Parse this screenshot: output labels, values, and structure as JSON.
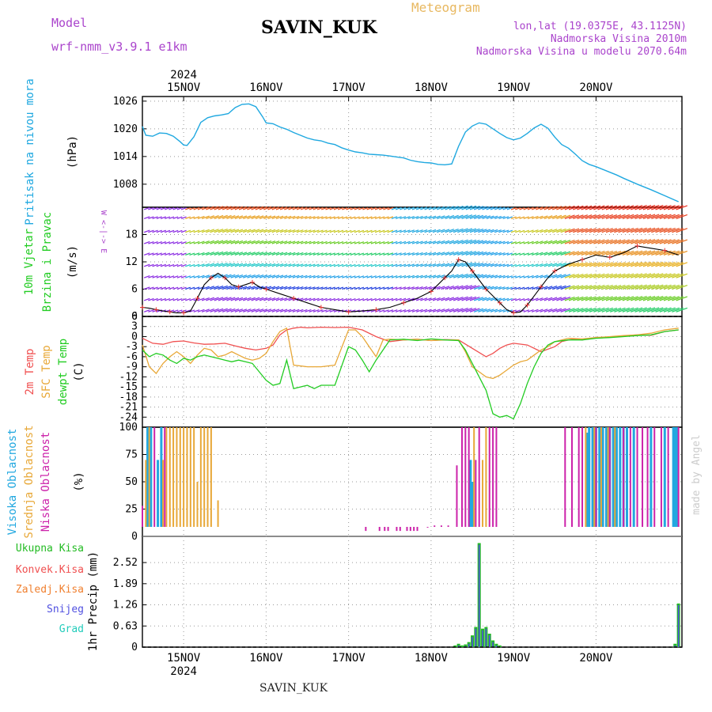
{
  "header": {
    "model_label": "Model",
    "model_name": "wrf-nmm_v3.9.1 e1km",
    "station": "SAVIN_KUK",
    "meteogram": "Meteogram",
    "lonlat": "lon,lat (19.0375E, 43.1125N)",
    "elev": "Nadmorska Visina 2010m",
    "elev_model": "Nadmorska Visina u modelu 2070.64m",
    "made_by": "made by Angel",
    "footer_station": "SAVIN_KUK",
    "year_top": "2024",
    "year_bottom": "2024"
  },
  "colors": {
    "pressure": "#1fa8e0",
    "temp2m": "#f05050",
    "sfc": "#e8a838",
    "dew": "#22cc22",
    "high_cloud": "#22a8e0",
    "mid_cloud": "#e8a838",
    "low_cloud": "#cc22aa",
    "precip": "#22bb22",
    "conv": "#f05050",
    "frozen": "#f08030",
    "snow": "#5050e0",
    "hail": "#22ccbb",
    "purple": "#aa44cc"
  },
  "chart_data": [
    {
      "type": "line",
      "panel": "pressure",
      "ylabel_lines": [
        "Pritisak na nivou mora",
        "(hPa)"
      ],
      "ylim": [
        1003,
        1027
      ],
      "yticks": [
        "1008",
        "1014",
        "1020",
        "1026"
      ],
      "x_day_labels": [
        "15NOV",
        "16NOV",
        "17NOV",
        "18NOV",
        "19NOV",
        "20NOV"
      ],
      "x_unit": "hours from 15NOV 00Z",
      "series": [
        {
          "key": "pressure",
          "x": [
            -12,
            -11,
            -9,
            -7,
            -5,
            -3,
            -1,
            0,
            1,
            3,
            5,
            7,
            9,
            11,
            13,
            15,
            17,
            19,
            21,
            23,
            24,
            26,
            28,
            30,
            32,
            34,
            36,
            38,
            40,
            42,
            44,
            46,
            48,
            50,
            52,
            54,
            56,
            58,
            60,
            62,
            64,
            66,
            68,
            70,
            72,
            74,
            76,
            78,
            80,
            82,
            84,
            86,
            88,
            90,
            92,
            94,
            96,
            98,
            100,
            102,
            104,
            106,
            108,
            110,
            112,
            114,
            116,
            118,
            120,
            122,
            124,
            126,
            128,
            132,
            136,
            140,
            144
          ],
          "values": [
            1020.5,
            1018.6,
            1018.4,
            1019.1,
            1019.0,
            1018.4,
            1017.2,
            1016.5,
            1016.4,
            1018.3,
            1021.4,
            1022.4,
            1022.8,
            1023.0,
            1023.3,
            1024.6,
            1025.3,
            1025.4,
            1024.8,
            1022.6,
            1021.3,
            1021.1,
            1020.4,
            1019.9,
            1019.2,
            1018.6,
            1018.0,
            1017.6,
            1017.4,
            1016.9,
            1016.6,
            1015.9,
            1015.4,
            1015.0,
            1014.8,
            1014.5,
            1014.4,
            1014.3,
            1014.1,
            1013.9,
            1013.7,
            1013.2,
            1012.9,
            1012.7,
            1012.6,
            1012.3,
            1012.2,
            1012.4,
            1016.2,
            1019.3,
            1020.6,
            1021.3,
            1021.0,
            1020.0,
            1019.0,
            1018.1,
            1017.6,
            1018.0,
            1019.0,
            1020.2,
            1021.0,
            1020.1,
            1018.2,
            1016.6,
            1015.8,
            1014.5,
            1013.1,
            1012.3,
            1011.8,
            1011.2,
            1010.6,
            1010.0,
            1009.3,
            1008.0,
            1006.8,
            1005.5,
            1004.2
          ]
        }
      ]
    },
    {
      "type": "line",
      "panel": "wind",
      "ylabel_lines": [
        "10m Vjetar",
        "Brzina i Pravac",
        "(m/s)"
      ],
      "ylim": [
        0,
        24
      ],
      "yticks": [
        "0",
        "6",
        "12",
        "18"
      ],
      "compass": "W <-|-> E",
      "series": [
        {
          "key": "wind_speed",
          "x": [
            -12,
            -10,
            -8,
            -6,
            -4,
            -2,
            0,
            2,
            4,
            6,
            8,
            10,
            12,
            14,
            16,
            18,
            20,
            22,
            24,
            28,
            32,
            36,
            40,
            44,
            48,
            52,
            56,
            60,
            64,
            68,
            72,
            74,
            76,
            78,
            80,
            82,
            84,
            86,
            88,
            90,
            92,
            94,
            96,
            98,
            100,
            102,
            104,
            106,
            108,
            112,
            116,
            120,
            124,
            128,
            132,
            136,
            140,
            144
          ],
          "values": [
            2.0,
            1.8,
            1.5,
            1.2,
            1.0,
            0.8,
            0.8,
            1.2,
            4.0,
            7.0,
            8.5,
            9.5,
            8.5,
            7.0,
            6.5,
            7.0,
            7.5,
            6.5,
            6.0,
            5.0,
            4.0,
            3.0,
            2.0,
            1.5,
            1.0,
            1.2,
            1.5,
            2.0,
            3.0,
            4.0,
            5.5,
            7.0,
            8.5,
            10.0,
            12.5,
            12.0,
            10.0,
            8.0,
            6.0,
            4.5,
            3.0,
            1.5,
            0.8,
            1.0,
            2.5,
            4.5,
            6.5,
            8.5,
            10.0,
            11.5,
            12.5,
            13.5,
            13.0,
            14.0,
            15.5,
            15.0,
            14.5,
            13.5
          ]
        }
      ]
    },
    {
      "type": "line",
      "panel": "temperature",
      "ylabel_lines": [
        "2m Temp",
        "SFC Temp",
        "dewpt Temp",
        "(C)"
      ],
      "ylim": [
        -27,
        6
      ],
      "yticks": [
        "6",
        "3",
        "0",
        "-3",
        "-6",
        "-9",
        "-12",
        "-15",
        "-18",
        "-21",
        "-24"
      ],
      "series": [
        {
          "key": "temp2m",
          "x": [
            -12,
            -9,
            -6,
            -3,
            0,
            3,
            6,
            9,
            12,
            15,
            18,
            21,
            24,
            26,
            28,
            30,
            32,
            34,
            36,
            40,
            44,
            48,
            52,
            56,
            60,
            64,
            68,
            72,
            76,
            80,
            84,
            88,
            90,
            92,
            94,
            96,
            100,
            104,
            108,
            110,
            112,
            114,
            116,
            118,
            120,
            124,
            128,
            132,
            136,
            140,
            144
          ],
          "values": [
            -0.5,
            -2.0,
            -2.3,
            -1.5,
            -1.3,
            -1.9,
            -2.3,
            -2.2,
            -2.0,
            -2.8,
            -3.5,
            -4.0,
            -3.5,
            -2.5,
            0.5,
            2.0,
            2.5,
            2.8,
            2.6,
            2.8,
            2.7,
            2.8,
            2.0,
            0.0,
            -1.5,
            -1.0,
            -0.8,
            -1.2,
            -0.9,
            -1.0,
            -3.5,
            -6.0,
            -5.0,
            -3.5,
            -2.5,
            -2.0,
            -2.5,
            -4.5,
            -3.0,
            -1.5,
            -1.0,
            -0.7,
            -1.0,
            -0.6,
            -0.3,
            -0.2,
            0.2,
            0.5,
            0.4,
            1.5,
            2.0
          ]
        },
        {
          "key": "sfc",
          "x": [
            -12,
            -10,
            -8,
            -6,
            -4,
            -2,
            0,
            2,
            4,
            6,
            8,
            10,
            12,
            14,
            16,
            18,
            20,
            22,
            24,
            26,
            28,
            30,
            32,
            36,
            40,
            44,
            48,
            50,
            52,
            54,
            56,
            58,
            60,
            64,
            68,
            72,
            76,
            80,
            82,
            84,
            86,
            88,
            90,
            92,
            94,
            96,
            98,
            100,
            102,
            104,
            106,
            108,
            112,
            116,
            120,
            124,
            128,
            132,
            136,
            140,
            144
          ],
          "values": [
            -2.5,
            -9.0,
            -11.0,
            -8.0,
            -6.0,
            -4.5,
            -6.0,
            -8.0,
            -5.5,
            -3.5,
            -4.0,
            -6.0,
            -5.5,
            -4.5,
            -5.5,
            -6.5,
            -7.0,
            -6.5,
            -5.0,
            -1.5,
            1.5,
            2.5,
            -8.5,
            -9.0,
            -9.0,
            -8.5,
            2.0,
            2.0,
            0.0,
            -3.0,
            -6.0,
            -1.0,
            -0.8,
            -1.0,
            -0.8,
            -1.2,
            -1.0,
            -1.0,
            -4.5,
            -9.0,
            -10.5,
            -12.0,
            -12.5,
            -11.5,
            -10.0,
            -8.5,
            -7.5,
            -7.0,
            -5.5,
            -4.0,
            -3.0,
            -1.5,
            -0.5,
            -0.7,
            -0.3,
            0.0,
            0.3,
            0.5,
            1.0,
            2.0,
            2.5
          ]
        },
        {
          "key": "dew",
          "x": [
            -12,
            -10,
            -8,
            -6,
            -4,
            -2,
            0,
            2,
            4,
            6,
            8,
            10,
            12,
            14,
            16,
            18,
            20,
            22,
            24,
            26,
            28,
            30,
            32,
            34,
            36,
            38,
            40,
            44,
            48,
            50,
            52,
            54,
            56,
            60,
            64,
            68,
            72,
            76,
            80,
            82,
            84,
            86,
            88,
            90,
            92,
            94,
            96,
            98,
            100,
            102,
            104,
            106,
            108,
            112,
            116,
            120,
            124,
            128,
            132,
            136,
            140,
            144
          ],
          "values": [
            -4.0,
            -6.0,
            -5.0,
            -5.5,
            -7.0,
            -8.0,
            -6.5,
            -7.0,
            -6.0,
            -5.5,
            -6.0,
            -6.5,
            -7.0,
            -7.5,
            -7.0,
            -7.5,
            -8.0,
            -10.5,
            -13.0,
            -14.5,
            -14.0,
            -7.0,
            -15.5,
            -15.0,
            -14.5,
            -15.5,
            -14.5,
            -14.5,
            -3.0,
            -4.0,
            -7.0,
            -10.5,
            -7.0,
            -1.0,
            -0.8,
            -1.2,
            -0.7,
            -1.0,
            -1.2,
            -4.0,
            -8.0,
            -12.0,
            -16.0,
            -23.0,
            -24.0,
            -23.5,
            -24.5,
            -20.0,
            -14.0,
            -9.0,
            -5.0,
            -2.5,
            -1.5,
            -1.0,
            -1.0,
            -0.5,
            -0.3,
            0.0,
            0.3,
            0.5,
            1.5,
            2.0
          ]
        }
      ]
    },
    {
      "type": "bar",
      "panel": "clouds",
      "ylabel_lines": [
        "Visoka Oblacnost",
        "Srednja Oblacnost",
        "Niska Oblacnost",
        "(%)"
      ],
      "ylim": [
        0,
        100
      ],
      "yticks": [
        "0",
        "25",
        "50",
        "75",
        "100"
      ],
      "series": [
        {
          "key": "high_cloud",
          "x": [
            -10.5,
            -9.5,
            -7.5,
            -6.5,
            83.5,
            84.0,
            117.5,
            118.0,
            119.0,
            120.0,
            121.0,
            122.0,
            123.0,
            124.0,
            125.0,
            126.0,
            127.0,
            128.0,
            129.0,
            131.0,
            136.0,
            140.0,
            142.5,
            143.0,
            143.5
          ],
          "values": [
            100,
            100,
            70,
            100,
            70,
            50,
            95,
            100,
            100,
            100,
            100,
            100,
            100,
            100,
            100,
            100,
            100,
            100,
            100,
            100,
            100,
            100,
            100,
            100,
            100
          ]
        },
        {
          "key": "mid_cloud",
          "x": [
            -11.0,
            -10.0,
            -6.0,
            -5.0,
            -4.0,
            -3.0,
            -2.0,
            -1.0,
            0.0,
            1.0,
            2.0,
            3.0,
            4.0,
            5.0,
            6.0,
            7.0,
            8.0,
            10.0,
            84.5,
            87.0,
            88.0,
            117.0,
            119.5,
            121.5,
            123.5,
            125.5
          ],
          "values": [
            70,
            100,
            70,
            100,
            100,
            100,
            100,
            100,
            100,
            100,
            100,
            100,
            50,
            100,
            100,
            100,
            100,
            33,
            100,
            70,
            100,
            100,
            100,
            100,
            100,
            100
          ]
        },
        {
          "key": "low_cloud",
          "x": [
            -12.0,
            -8.5,
            -5.5,
            53.0,
            57.0,
            58.5,
            59.5,
            62.0,
            63.0,
            65.0,
            66.0,
            67.0,
            68.0,
            71.0,
            73.0,
            75.0,
            77.0,
            79.5,
            81.0,
            82.0,
            83.0,
            85.0,
            86.0,
            89.0,
            90.0,
            91.0,
            111.0,
            113.0,
            115.0,
            116.0,
            120.0,
            124.0,
            128.0,
            130.0,
            132.0,
            133.5,
            135.0,
            137.0,
            139.0,
            141.0,
            144.0
          ],
          "values": [
            28,
            100,
            100,
            5,
            5,
            5,
            5,
            5,
            5,
            5,
            5,
            5,
            5,
            8,
            10,
            10,
            10,
            65,
            100,
            100,
            100,
            70,
            100,
            100,
            100,
            100,
            100,
            100,
            100,
            100,
            100,
            100,
            100,
            100,
            100,
            100,
            100,
            100,
            100,
            100,
            100
          ]
        }
      ]
    },
    {
      "type": "bar",
      "panel": "precip",
      "ylabel_lines": [
        "Ukupna Kisa",
        "Konvek.Kisa",
        "Zaledj.Kisa",
        "Snijeg",
        "Grad",
        "1hr Precip (mm)"
      ],
      "ylim": [
        0,
        3.3
      ],
      "yticks": [
        "0",
        "0.63",
        "1.26",
        "1.89",
        "2.52"
      ],
      "series": [
        {
          "key": "precip",
          "x": [
            79.0,
            80.0,
            81.0,
            82.0,
            83.0,
            84.0,
            85.0,
            86.0,
            87.0,
            88.0,
            89.0,
            90.0,
            91.0,
            92.0,
            143.0,
            144.0
          ],
          "values": [
            0.05,
            0.1,
            0.05,
            0.08,
            0.15,
            0.35,
            0.6,
            3.1,
            0.55,
            0.6,
            0.4,
            0.2,
            0.1,
            0.05,
            0.1,
            1.3
          ]
        }
      ]
    }
  ]
}
